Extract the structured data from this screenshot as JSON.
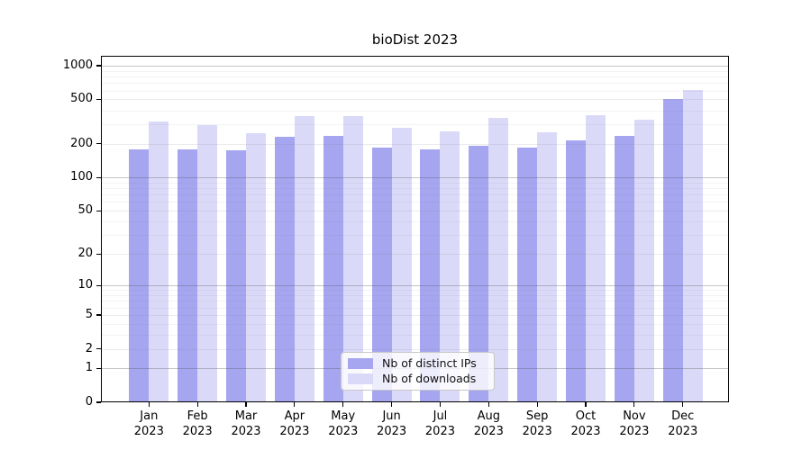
{
  "chart_data": {
    "type": "bar",
    "title": "bioDist 2023",
    "categories": [
      "Jan\n2023",
      "Feb\n2023",
      "Mar\n2023",
      "Apr\n2023",
      "May\n2023",
      "Jun\n2023",
      "Jul\n2023",
      "Aug\n2023",
      "Sep\n2023",
      "Oct\n2023",
      "Nov\n2023",
      "Dec\n2023"
    ],
    "series": [
      {
        "name": "Nb of distinct IPs",
        "color": "#a5a5f0",
        "values": [
          180,
          180,
          175,
          230,
          234,
          186,
          177,
          193,
          185,
          217,
          238,
          500
        ]
      },
      {
        "name": "Nb of downloads",
        "color": "#dadaf8",
        "values": [
          320,
          294,
          249,
          358,
          356,
          281,
          259,
          342,
          253,
          364,
          328,
          608
        ]
      }
    ],
    "xlabel": "",
    "ylabel": "",
    "y_ticks": [
      0,
      1,
      2,
      5,
      10,
      20,
      50,
      100,
      200,
      500,
      1000
    ],
    "ylim": [
      0,
      1225
    ],
    "yscale": "log10(value+1)",
    "grid": true,
    "legend_position": "lower center"
  }
}
